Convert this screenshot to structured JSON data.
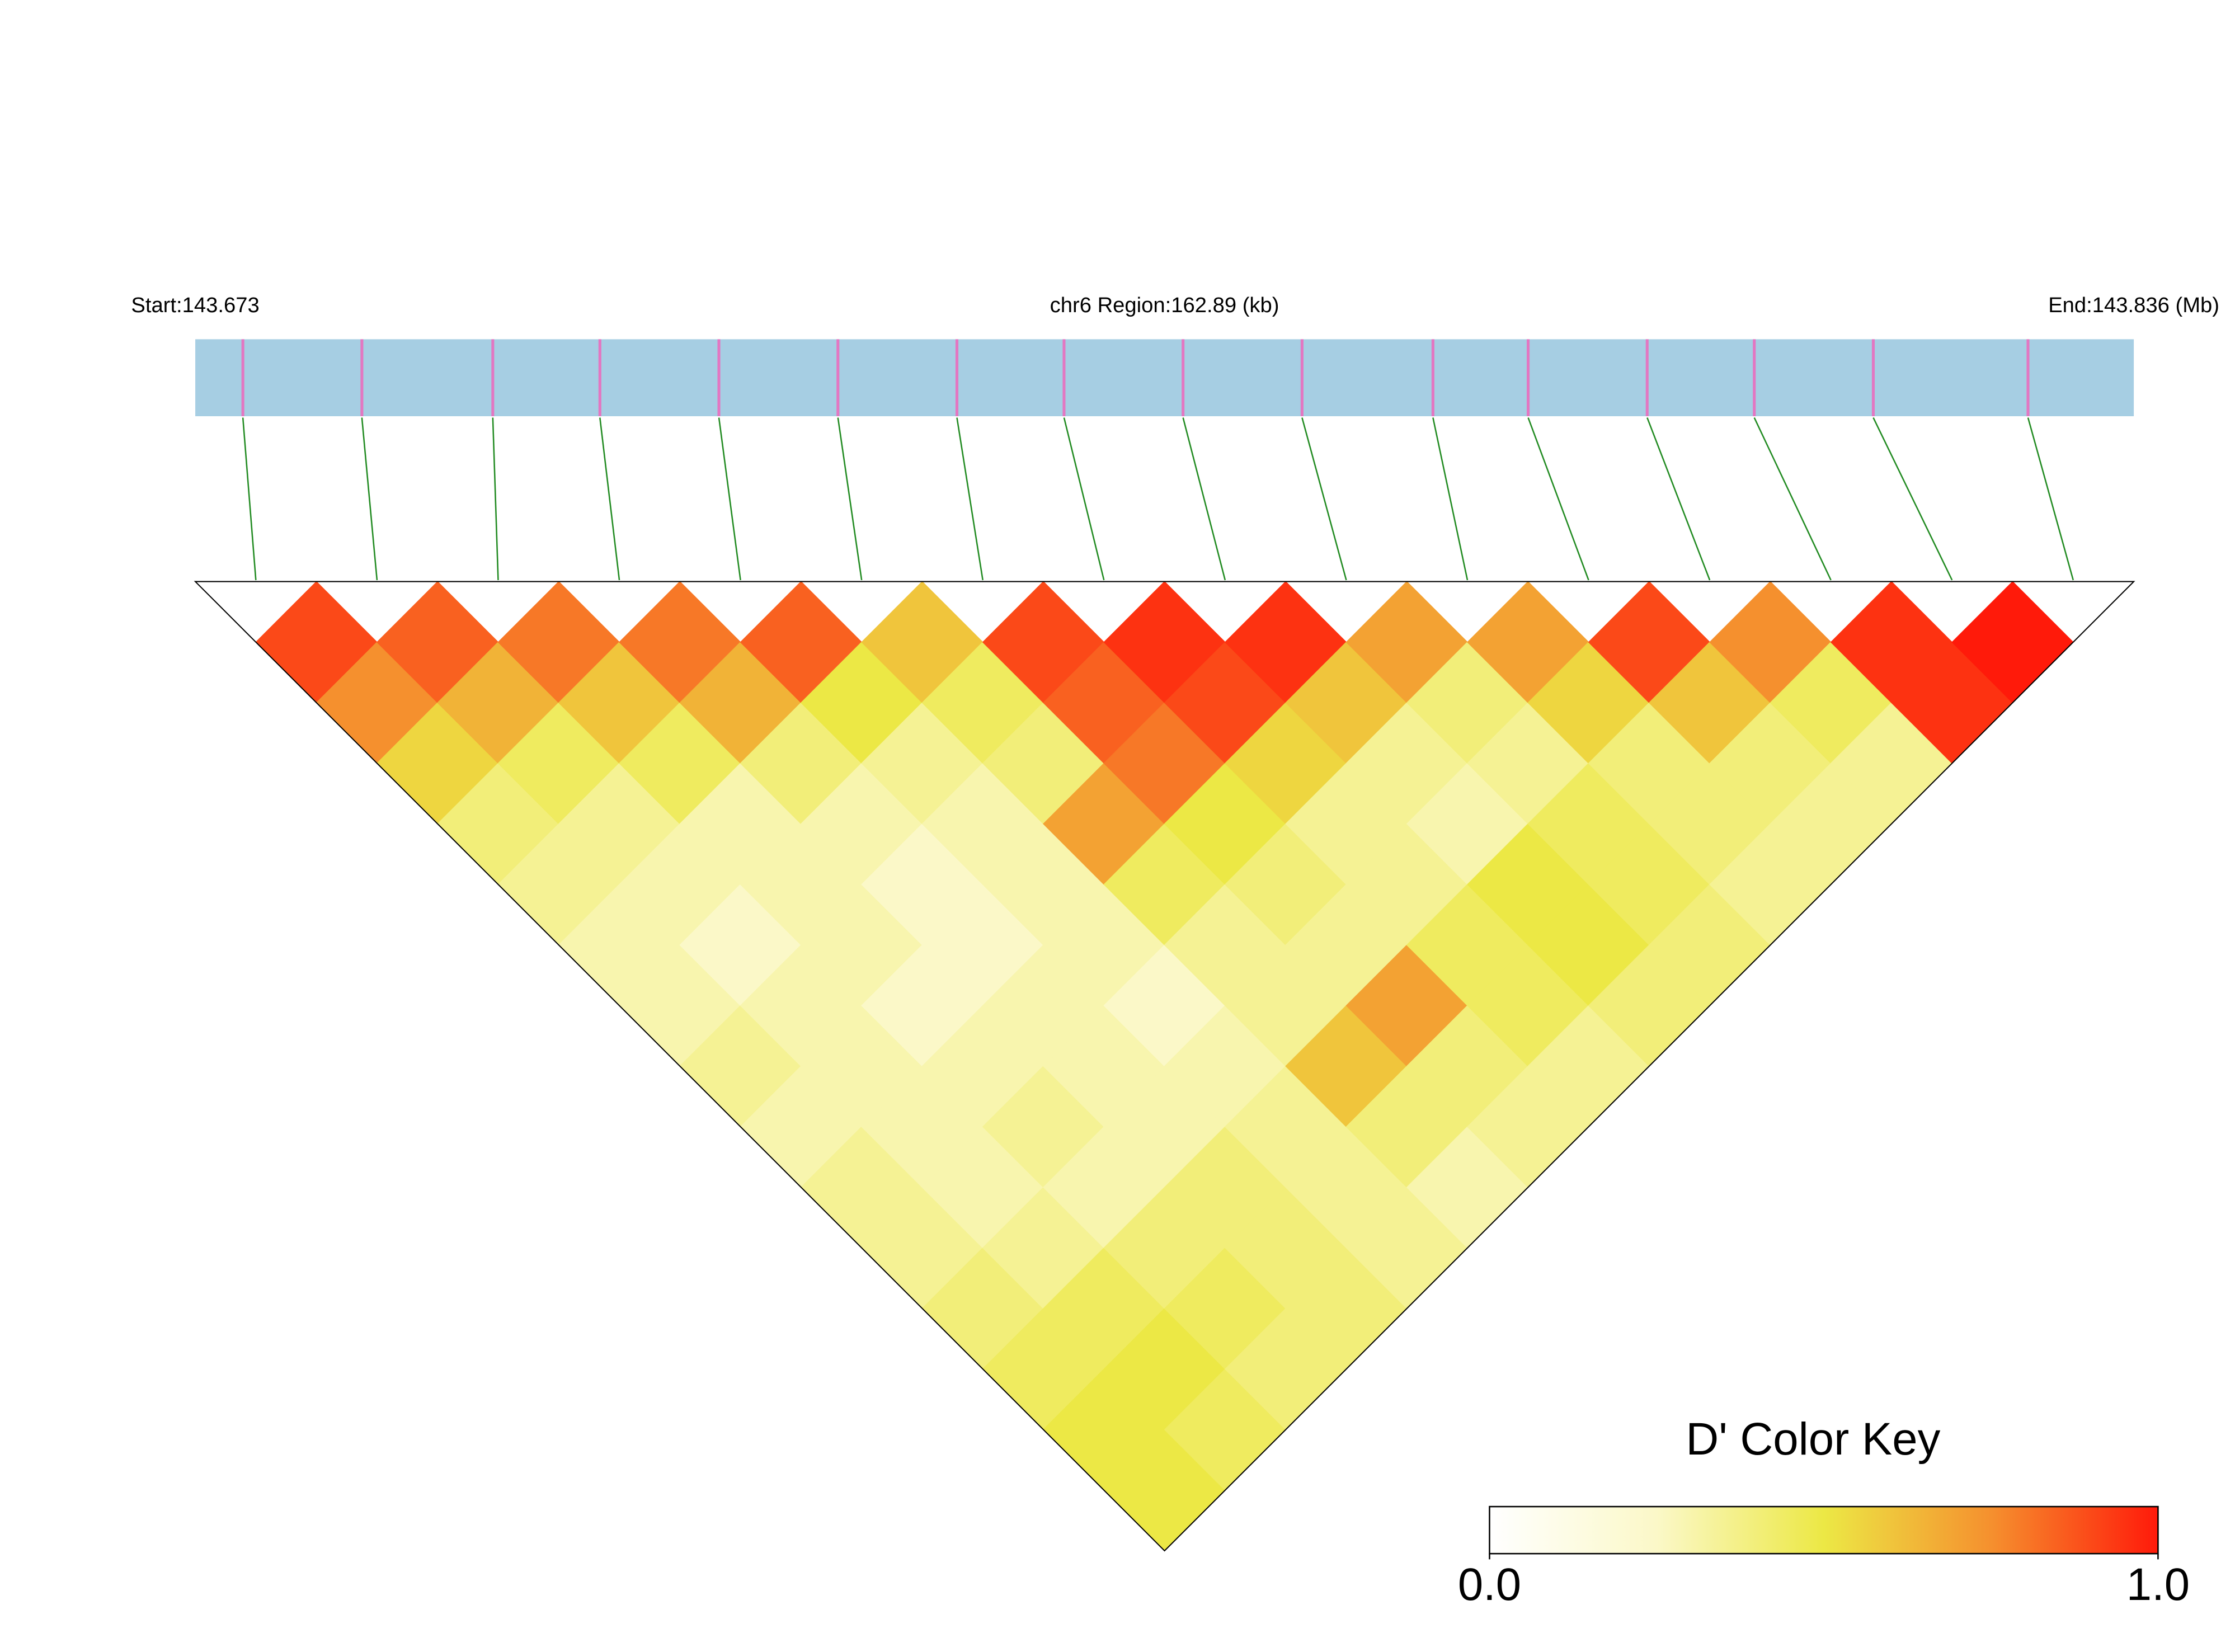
{
  "chart_data": {
    "type": "heatmap",
    "start_label": "Start:143.673",
    "region_label": "chr6 Region:162.89 (kb)",
    "end_label": "End:143.836 (Mb)",
    "xlim": [
      0,
      162.89
    ],
    "snp_positions": [
      4,
      14,
      25,
      34,
      44,
      54,
      64,
      73,
      83,
      93,
      104,
      112,
      122,
      131,
      141,
      154
    ],
    "matrix": [
      [
        0.9,
        0.75,
        0.55,
        0.4,
        0.35,
        0.3,
        0.3,
        0.35,
        0.3,
        0.35,
        0.35,
        0.4,
        0.45,
        0.5,
        0.5
      ],
      [
        0.85,
        0.65,
        0.45,
        0.35,
        0.3,
        0.25,
        0.3,
        0.3,
        0.3,
        0.3,
        0.35,
        0.45,
        0.5,
        0.45
      ],
      [
        0.8,
        0.6,
        0.45,
        0.3,
        0.3,
        0.3,
        0.25,
        0.3,
        0.35,
        0.3,
        0.4,
        0.45,
        0.4
      ],
      [
        0.8,
        0.65,
        0.4,
        0.3,
        0.25,
        0.25,
        0.3,
        0.3,
        0.3,
        0.4,
        0.4,
        0.4
      ],
      [
        0.85,
        0.5,
        0.35,
        0.3,
        0.3,
        0.3,
        0.25,
        0.3,
        0.35,
        0.35,
        0.35
      ],
      [
        0.6,
        0.45,
        0.4,
        0.7,
        0.45,
        0.35,
        0.35,
        0.6,
        0.4,
        0.3
      ],
      [
        0.9,
        0.85,
        0.8,
        0.5,
        0.4,
        0.35,
        0.7,
        0.4,
        0.35
      ],
      [
        0.95,
        0.9,
        0.55,
        0.35,
        0.35,
        0.45,
        0.45,
        0.35
      ],
      [
        0.95,
        0.6,
        0.35,
        0.3,
        0.5,
        0.5,
        0.4
      ],
      [
        0.7,
        0.4,
        0.35,
        0.45,
        0.45,
        0.4
      ],
      [
        0.7,
        0.55,
        0.4,
        0.4,
        0.35
      ],
      [
        0.9,
        0.6,
        0.4,
        0.35
      ],
      [
        0.75,
        0.45,
        0.35
      ],
      [
        0.95,
        0.95
      ],
      [
        1.0
      ]
    ],
    "colormap": [
      "#ffffff",
      "#fbf8c8",
      "#ece845",
      "#f5902e",
      "#ff1a0a"
    ],
    "legend_title": "D' Color Key",
    "clim": [
      0,
      1
    ],
    "cticks": [
      {
        "value": 0,
        "label": "0.0"
      },
      {
        "value": 1,
        "label": "1.0"
      }
    ]
  }
}
